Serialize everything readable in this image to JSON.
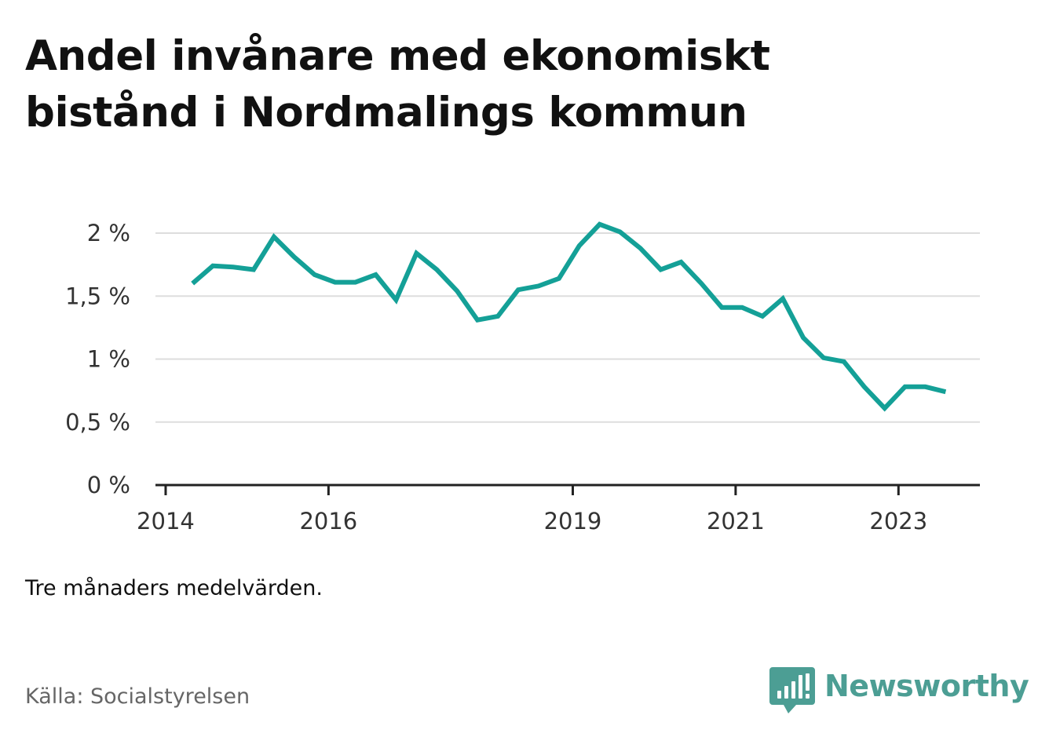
{
  "title": "Andel invånare med ekonomiskt bistånd i Nordmalings kommun",
  "note": "Tre månaders medelvärden.",
  "source": "Källa: Socialstyrelsen",
  "brand": {
    "name": "Newsworthy",
    "color": "#4c9e94",
    "icon": "newsworthy-logo-icon"
  },
  "colors": {
    "line": "#14a097",
    "grid": "#dddddd",
    "axis": "#222222"
  },
  "chart_data": {
    "type": "line",
    "title": "Andel invånare med ekonomiskt bistånd i Nordmalings kommun",
    "xlabel": "",
    "ylabel": "",
    "x_tick_labels": [
      "2014",
      "2016",
      "2019",
      "2021",
      "2023"
    ],
    "x_tick_values": [
      2014,
      2016,
      2019,
      2021,
      2023
    ],
    "y_tick_labels": [
      "0 %",
      "0,5 %",
      "1 %",
      "1,5 %",
      "2 %"
    ],
    "y_tick_values": [
      0,
      0.5,
      1,
      1.5,
      2
    ],
    "xlim": [
      2013.875,
      2024.0
    ],
    "ylim": [
      0,
      2.0
    ],
    "grid": true,
    "legend": "none",
    "series": [
      {
        "x": [
          2014.33,
          2014.58,
          2014.83,
          2015.08,
          2015.33,
          2015.58,
          2015.83,
          2016.08,
          2016.33,
          2016.58,
          2016.83,
          2017.08,
          2017.33,
          2017.58,
          2017.83,
          2018.08,
          2018.33,
          2018.58,
          2018.83,
          2019.08,
          2019.33,
          2019.58,
          2019.83,
          2020.08,
          2020.33,
          2020.58,
          2020.83,
          2021.08,
          2021.33,
          2021.58,
          2021.83,
          2022.08,
          2022.33,
          2022.58,
          2022.83,
          2023.08,
          2023.33,
          2023.58
        ],
        "values": [
          1.6,
          1.74,
          1.73,
          1.71,
          1.97,
          1.81,
          1.67,
          1.61,
          1.61,
          1.67,
          1.47,
          1.84,
          1.71,
          1.54,
          1.31,
          1.34,
          1.55,
          1.58,
          1.64,
          1.9,
          2.07,
          2.01,
          1.88,
          1.71,
          1.77,
          1.6,
          1.41,
          1.41,
          1.34,
          1.48,
          1.17,
          1.01,
          0.98,
          0.78,
          0.61,
          0.78,
          0.78,
          0.74
        ]
      }
    ]
  }
}
